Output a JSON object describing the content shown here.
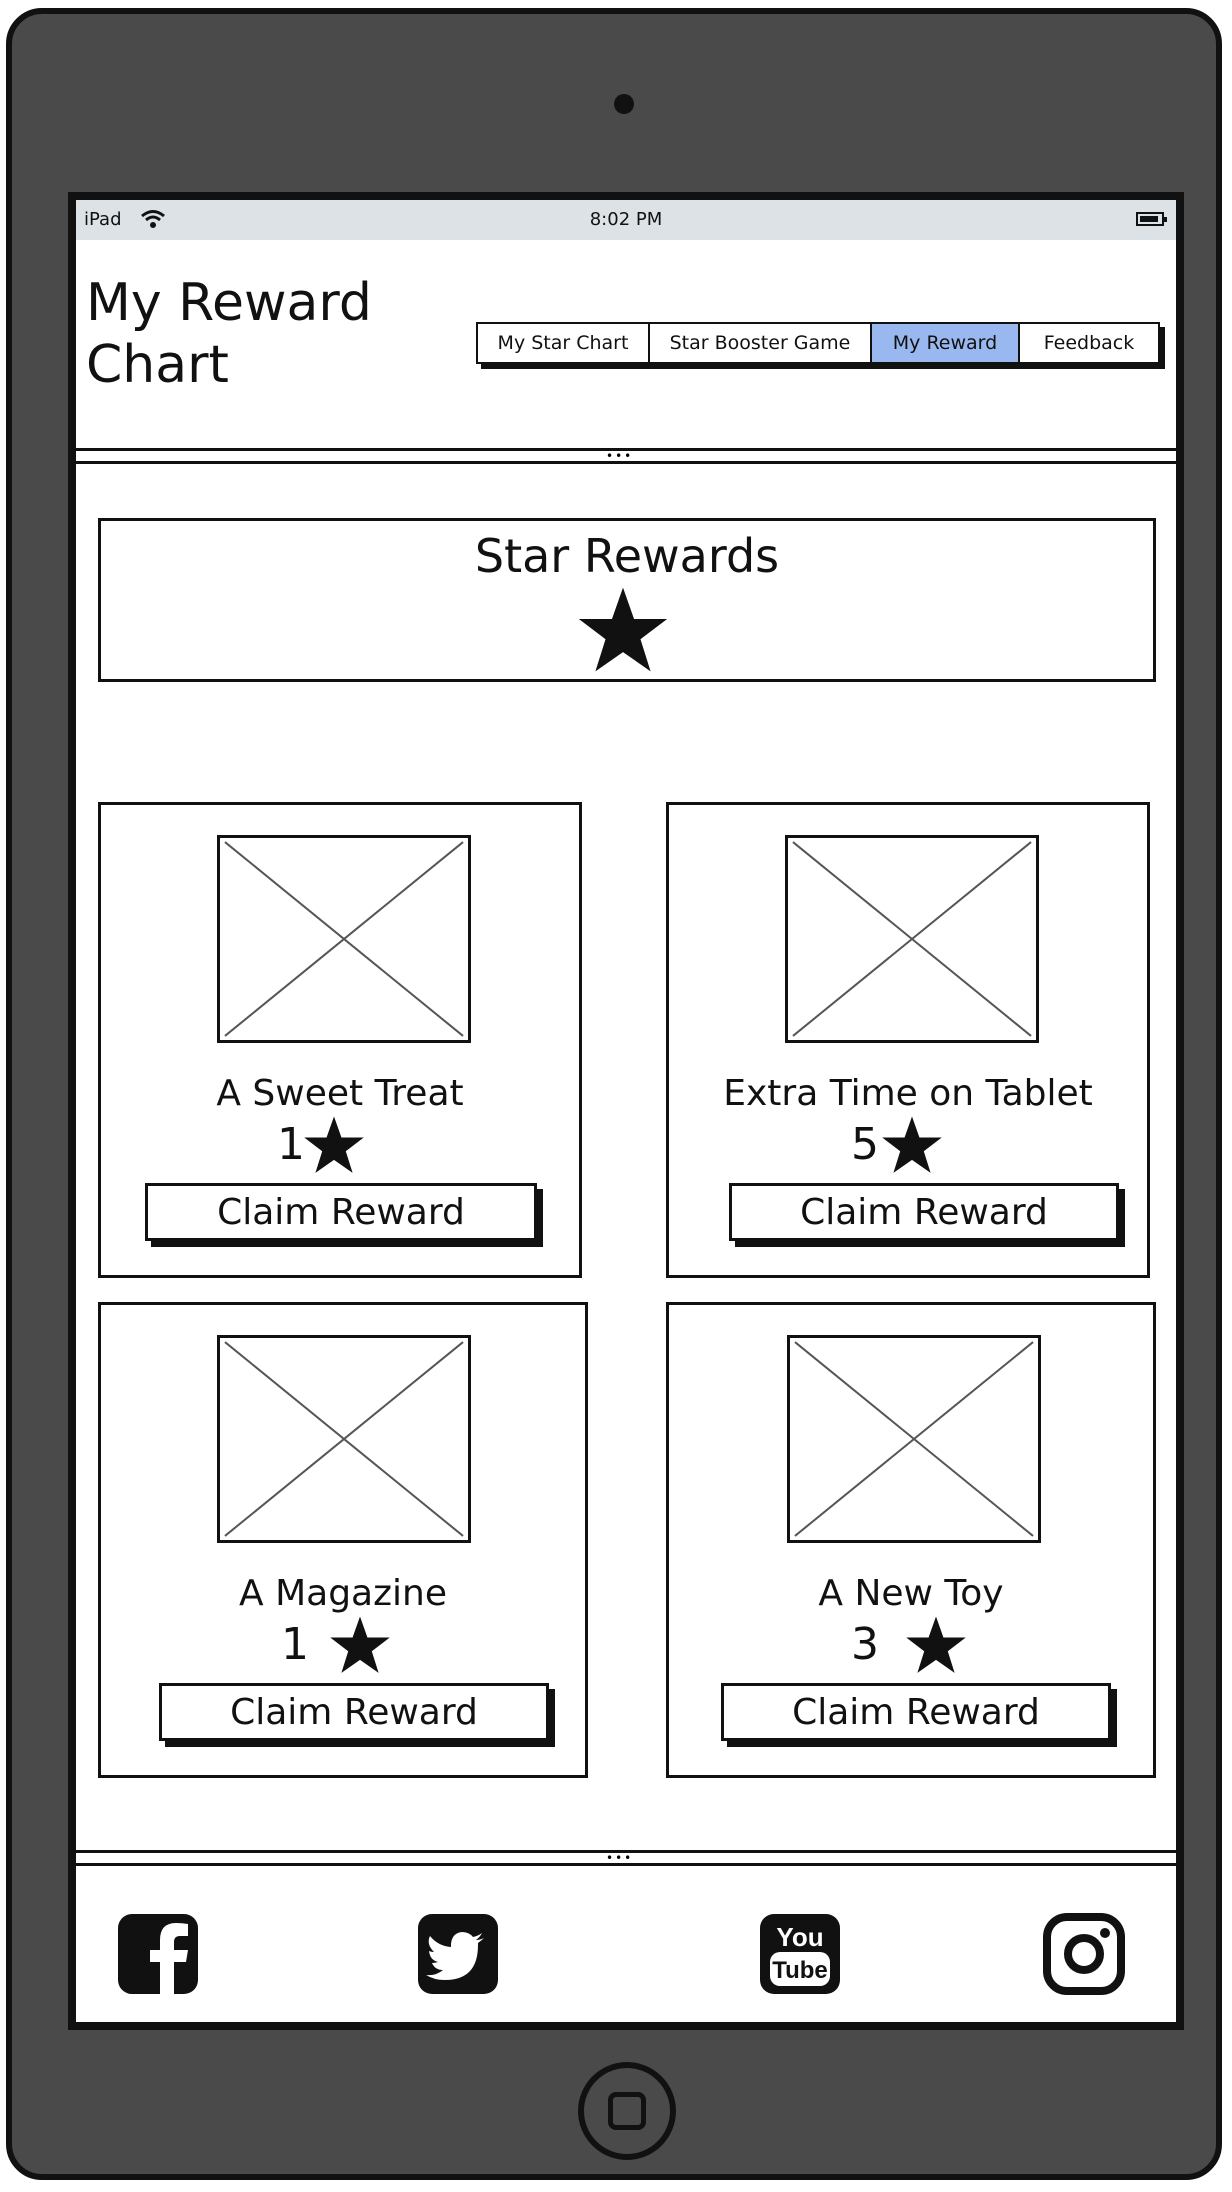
{
  "status_bar": {
    "device": "iPad",
    "time": "8:02 PM"
  },
  "header": {
    "title": "My Reward Chart",
    "nav": [
      {
        "label": "My Star Chart",
        "active": false
      },
      {
        "label": "Star Booster Game",
        "active": false
      },
      {
        "label": "My Reward",
        "active": true
      },
      {
        "label": "Feedback",
        "active": false
      }
    ]
  },
  "hero": {
    "title": "Star Rewards",
    "icon": "star-icon"
  },
  "rewards": [
    {
      "name": "A Sweet Treat",
      "cost": "1",
      "button": "Claim Reward"
    },
    {
      "name": "Extra Time on Tablet",
      "cost": "5",
      "button": "Claim Reward"
    },
    {
      "name": "A Magazine",
      "cost": "1",
      "button": "Claim Reward"
    },
    {
      "name": "A New Toy",
      "cost": "3",
      "button": "Claim Reward"
    }
  ],
  "footer": {
    "social": [
      "facebook-icon",
      "twitter-icon",
      "youtube-icon",
      "instagram-icon"
    ],
    "youtube_text": [
      "You",
      "Tube"
    ]
  },
  "colors": {
    "active_tab": "#99b8ef",
    "device": "#4a4a4a",
    "status_bar": "#dde2e6"
  }
}
